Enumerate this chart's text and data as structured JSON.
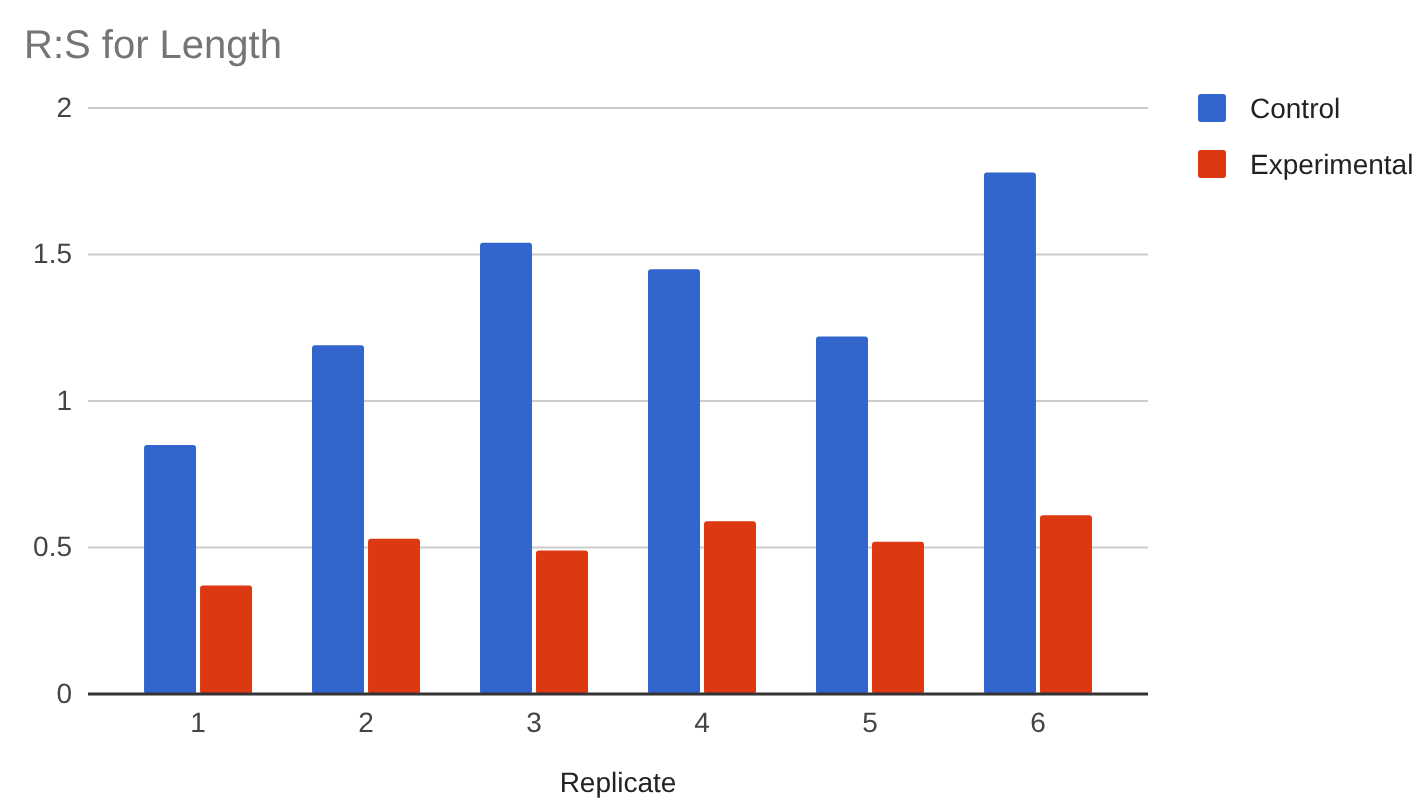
{
  "chart_data": {
    "type": "bar",
    "title": "R:S for Length",
    "xlabel": "Replicate",
    "categories": [
      "1",
      "2",
      "3",
      "4",
      "5",
      "6"
    ],
    "series": [
      {
        "name": "Control",
        "color": "#3366cc",
        "values": [
          0.85,
          1.19,
          1.54,
          1.45,
          1.22,
          1.78
        ]
      },
      {
        "name": "Experimental",
        "color": "#dc3912",
        "values": [
          0.37,
          0.53,
          0.49,
          0.59,
          0.52,
          0.61
        ]
      }
    ],
    "ylim": [
      0,
      2
    ],
    "yticks": [
      0,
      {
        "value": 0.5,
        "label": "0.5"
      },
      1,
      {
        "value": 1.5,
        "label": "1.5"
      },
      2
    ],
    "grid": "y",
    "legend": "right"
  }
}
